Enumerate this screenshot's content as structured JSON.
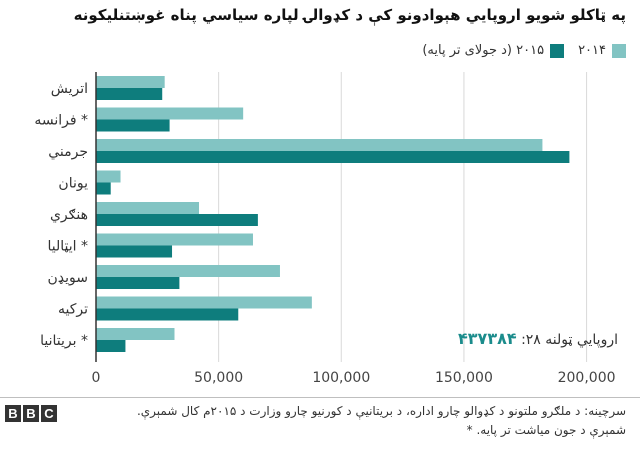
{
  "title": "په ټاکلو شویو اروپايي هېوادونو کې د کډوالۍ لپاره سیاسي پناه غوښتنلیکونه",
  "legend": {
    "series_2014": "۲۰۱۴",
    "series_2015": "۲۰۱۵ (د جولای تر پایه)"
  },
  "total": {
    "label": "اروپايي ټولنه ۲۸:",
    "value": "۴۳۷۳۸۴"
  },
  "source": "سرچینه: د ملګرو ملتونو د کډوالو چارو اداره، د بریتانیې د کورنیو چارو وزارت د ۲۰۱۵م کال شمېرې. شمېرې د جون میاشت تر پایه. *",
  "bbc_logo": [
    "B",
    "B",
    "C"
  ],
  "colors": {
    "series_2014": "#82c4c3",
    "series_2015": "#0e7d7d",
    "gridline": "#d9d9d9",
    "axis": "#333333",
    "total_value": "#1b8c8c"
  },
  "chart_data": {
    "type": "bar",
    "orientation": "horizontal",
    "categories": [
      "اتریش",
      "فرانسه *",
      "جرمني",
      "یونان",
      "هنګري",
      "ایټالیا *",
      "سویډن",
      "ترکیه",
      "بریتانیا *"
    ],
    "series": [
      {
        "name": "۲۰۱۴",
        "values": [
          28000,
          60000,
          182000,
          10000,
          42000,
          64000,
          75000,
          88000,
          32000
        ]
      },
      {
        "name": "۲۰۱۵ (د جولای تر پایه)",
        "values": [
          27000,
          30000,
          193000,
          6000,
          66000,
          31000,
          34000,
          58000,
          12000
        ]
      }
    ],
    "xlim": [
      0,
      212000
    ],
    "xticks": [
      0,
      50000,
      100000,
      150000,
      200000
    ],
    "xtick_labels": [
      "0",
      "50,000",
      "100,000",
      "150,000",
      "200,000"
    ],
    "grid": "vertical"
  }
}
